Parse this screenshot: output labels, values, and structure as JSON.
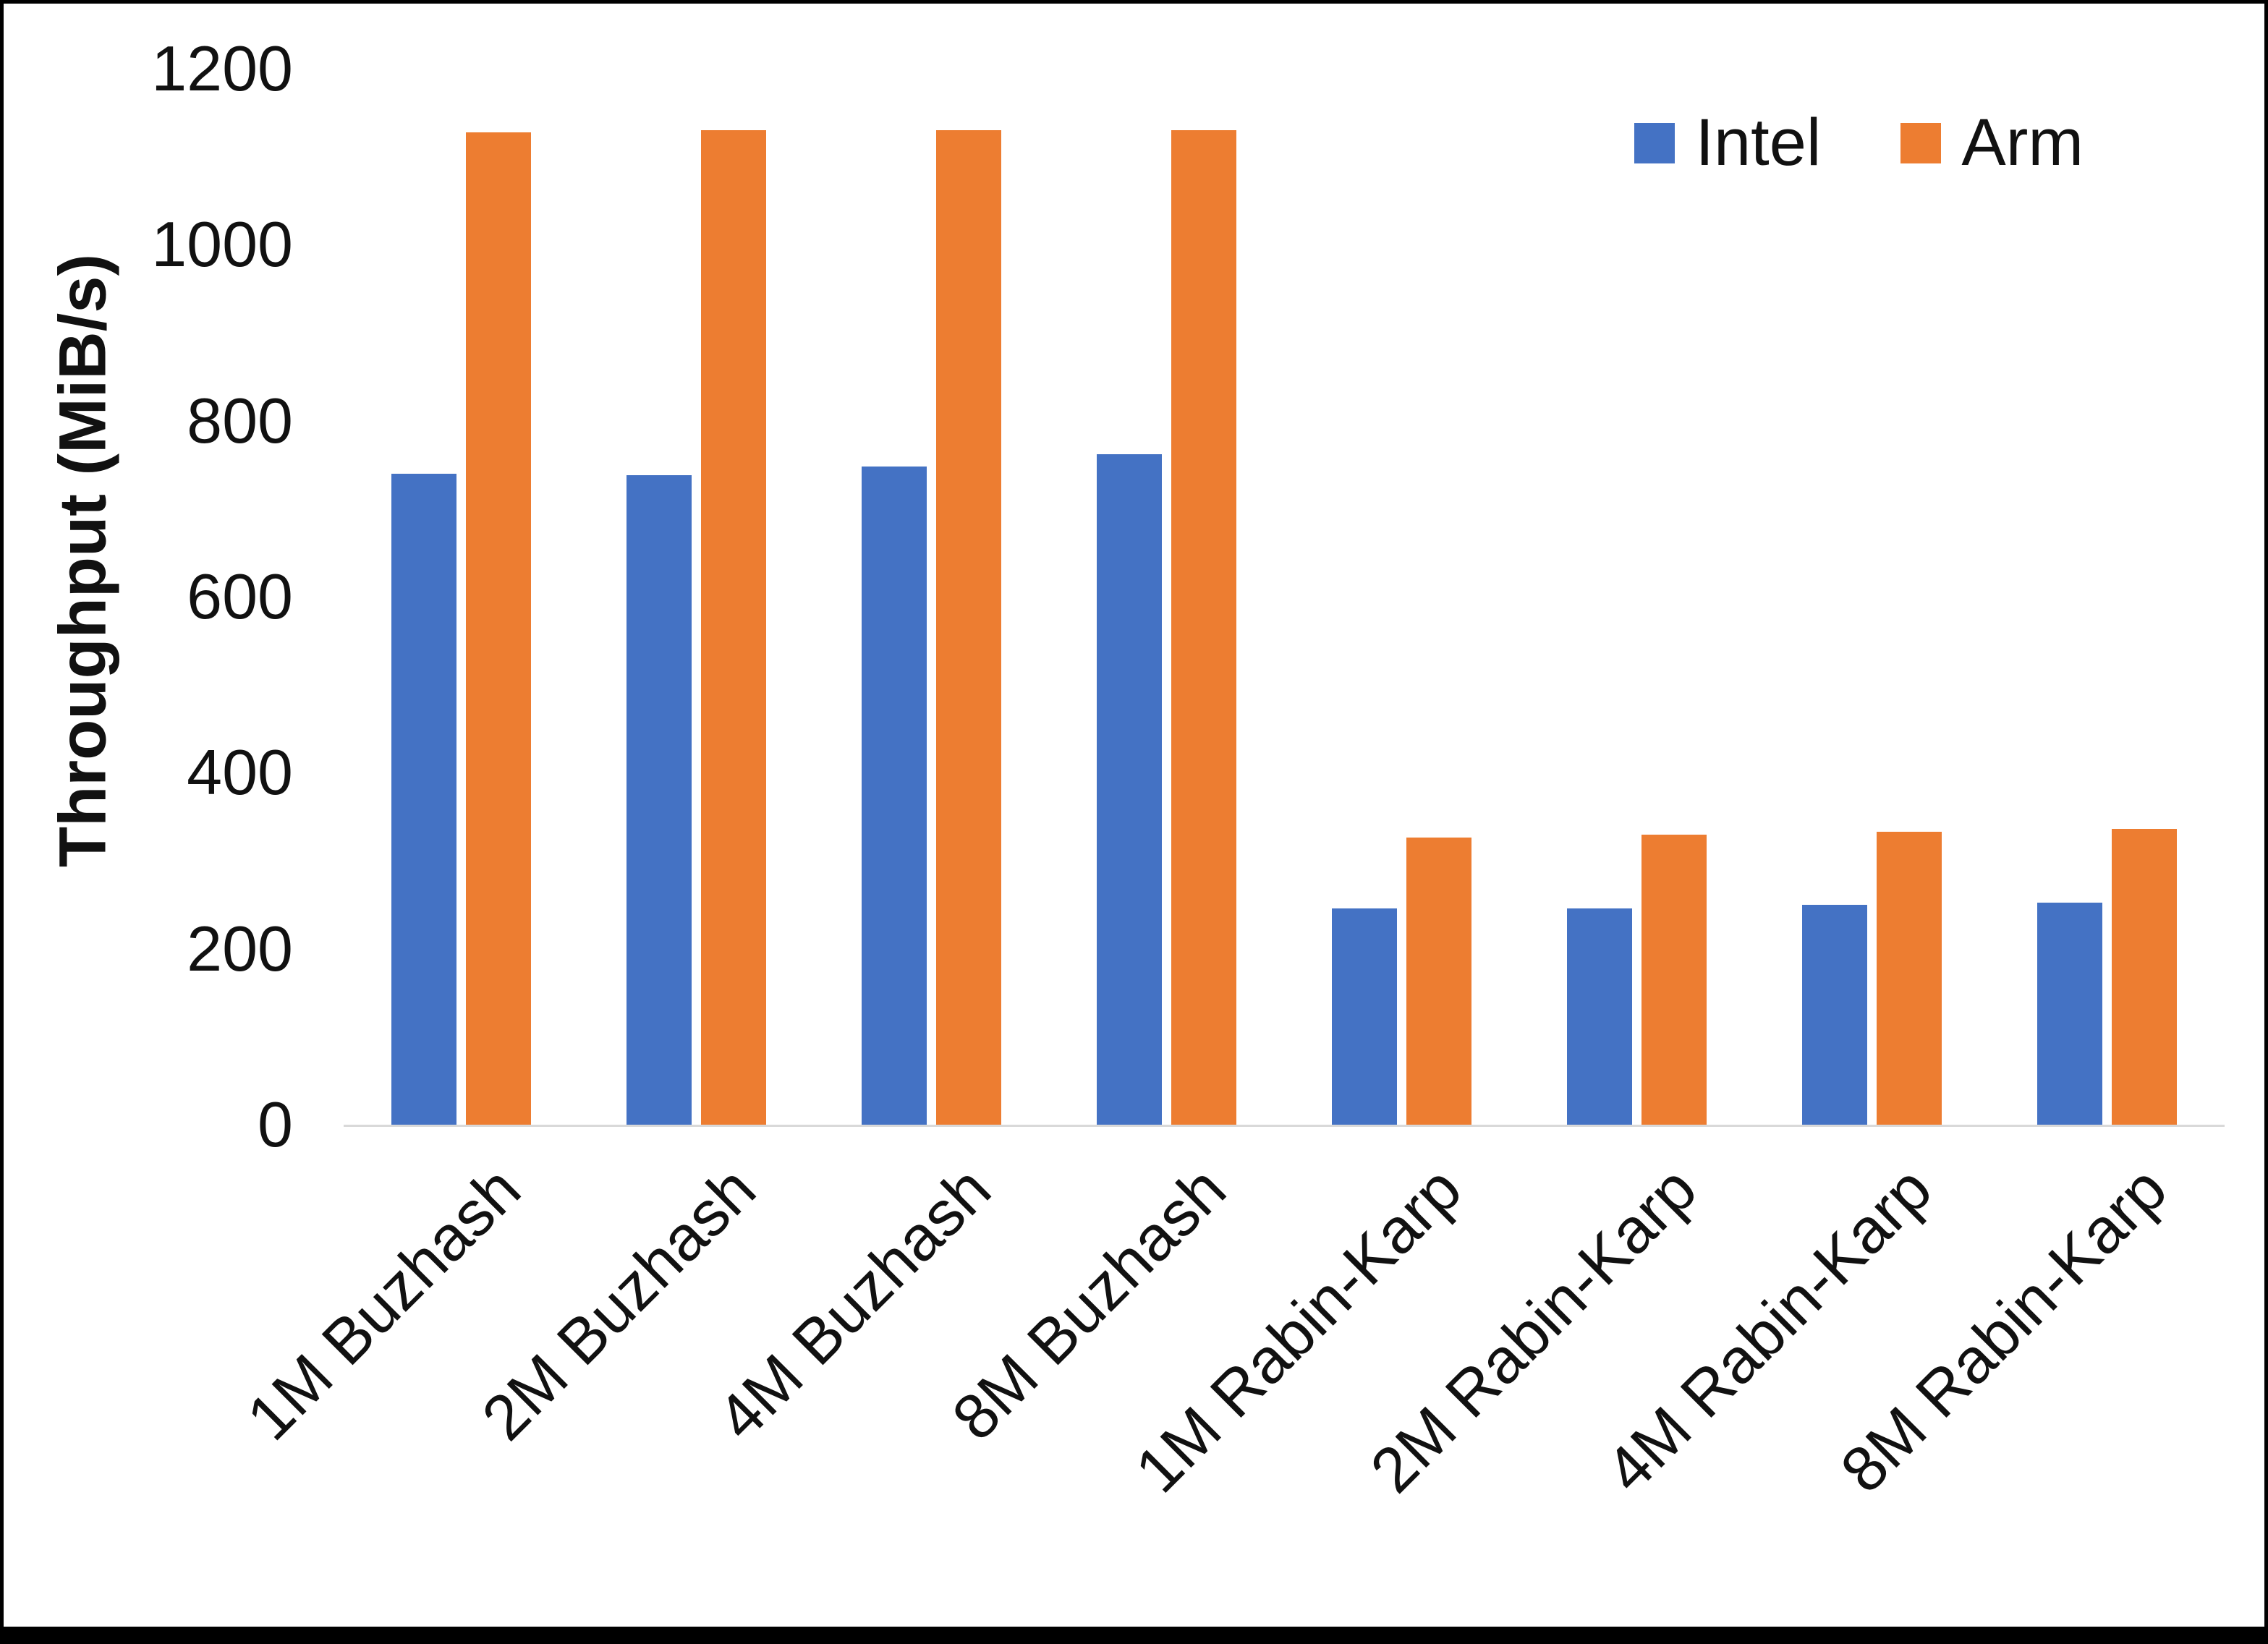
{
  "chart_data": {
    "type": "bar",
    "title": "",
    "ylabel": "Throughput (MiB/s)",
    "xlabel": "",
    "ylim": [
      0,
      1200
    ],
    "ytick_step": 200,
    "grid": false,
    "legend_position": "top-right",
    "categories": [
      "1M Buzhash",
      "2M Buzhash",
      "4M Buzhash",
      "8M Buzhash",
      "1M Rabin-Karp",
      "2M Rabin-Karp",
      "4M Rabin-Karp",
      "8M Rabin-Karp"
    ],
    "series": [
      {
        "name": "Intel",
        "color": "#4472C4",
        "values": [
          740,
          738,
          748,
          762,
          246,
          246,
          250,
          252
        ]
      },
      {
        "name": "Arm",
        "color": "#ED7D31",
        "values": [
          1128,
          1130,
          1130,
          1130,
          326,
          330,
          333,
          336
        ]
      }
    ]
  }
}
